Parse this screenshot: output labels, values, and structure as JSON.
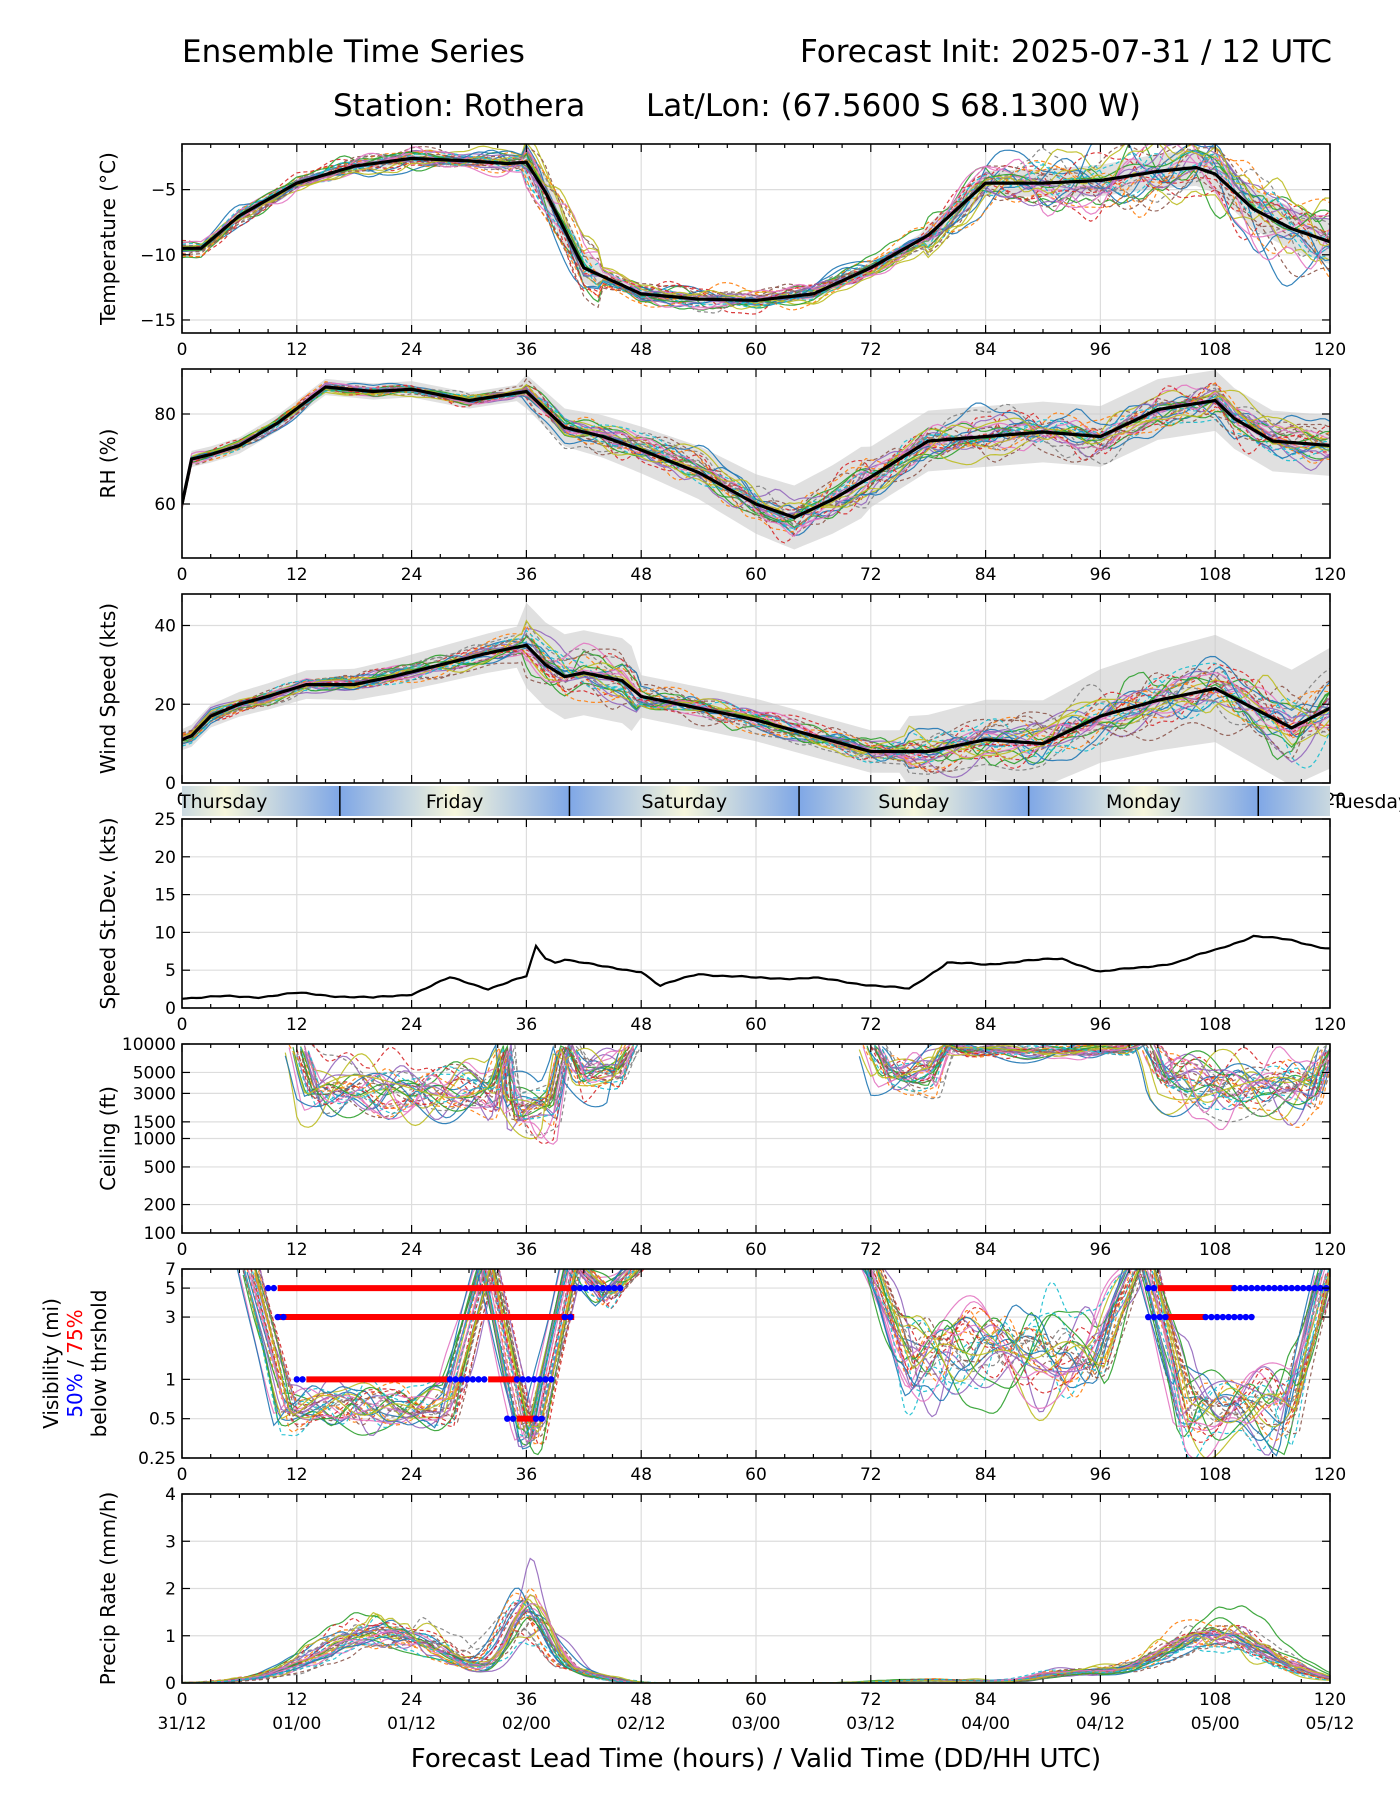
{
  "header": {
    "title_left": "Ensemble Time Series",
    "title_right": "Forecast Init: 2025-07-31 / 12 UTC",
    "station": "Station: Rothera",
    "latlon": "Lat/Lon: (67.5600 S 68.1300 W)"
  },
  "colors": {
    "ensemble": [
      "#1f77b4",
      "#ff7f0e",
      "#2ca02c",
      "#d62728",
      "#9467bd",
      "#8c564b",
      "#e377c2",
      "#7f7f7f",
      "#bcbd22",
      "#17becf"
    ],
    "mean": "#000000",
    "spread": "#cccccc",
    "grid": "#dddddd",
    "vis50": "#0000ff",
    "vis75": "#ff0000",
    "day_light": "#f6f6dc",
    "day_dark": "#7fa7e6"
  },
  "day_band": {
    "labels": [
      "Thursday",
      "Friday",
      "Saturday",
      "Sunday",
      "Monday",
      "Tuesday"
    ],
    "boundaries_hours": [
      16.5,
      40.5,
      64.5,
      88.5,
      112.5
    ]
  },
  "xaxis": {
    "range": [
      0,
      120
    ],
    "ticks": [
      "0",
      "12",
      "24",
      "36",
      "48",
      "60",
      "72",
      "84",
      "96",
      "108",
      "120"
    ],
    "valid_times": [
      "31/12",
      "01/00",
      "01/12",
      "02/00",
      "02/12",
      "03/00",
      "03/12",
      "04/00",
      "04/12",
      "05/00",
      "05/12"
    ],
    "xlabel": "Forecast Lead Time (hours) / Valid Time (DD/HH UTC)"
  },
  "chart_data": [
    {
      "id": "temperature",
      "type": "line",
      "ylabel": "Temperature (°C)",
      "ylim": [
        -16,
        -1.5
      ],
      "yticks": [
        "−5",
        "−10",
        "−15"
      ],
      "ytick_values": [
        -5,
        -10,
        -15
      ],
      "mean": {
        "x": [
          0,
          2,
          6,
          12,
          18,
          24,
          30,
          34,
          36,
          38,
          42,
          48,
          54,
          60,
          66,
          72,
          78,
          84,
          90,
          96,
          102,
          106,
          108,
          112,
          116,
          120
        ],
        "y": [
          -9.5,
          -9.5,
          -7,
          -4.5,
          -3.2,
          -2.6,
          -2.8,
          -3,
          -2.9,
          -5.2,
          -11,
          -13,
          -13.4,
          -13.5,
          -13,
          -11,
          -8.5,
          -4.5,
          -4.5,
          -4.3,
          -3.6,
          -3.3,
          -3.8,
          -6.5,
          -8,
          -9
        ]
      },
      "spread": 0.9
    },
    {
      "id": "rh",
      "type": "line",
      "ylabel": "RH (%)",
      "ylim": [
        48,
        90
      ],
      "yticks": [
        "80",
        "60"
      ],
      "ytick_values": [
        80,
        60
      ],
      "mean": {
        "x": [
          0,
          1,
          3,
          6,
          10,
          15,
          20,
          24,
          30,
          36,
          40,
          44,
          48,
          54,
          60,
          64,
          68,
          72,
          78,
          84,
          90,
          96,
          102,
          108,
          110,
          114,
          120
        ],
        "y": [
          60,
          70,
          71,
          73,
          78,
          86,
          85,
          85.5,
          83,
          85,
          77,
          75,
          72,
          67,
          60,
          57,
          61,
          66,
          74,
          75,
          76,
          75,
          81,
          83,
          79,
          74,
          73
        ]
      },
      "spread": 2.5
    },
    {
      "id": "wind_speed",
      "type": "line",
      "ylabel": "Wind Speed (kts)",
      "ylim": [
        0,
        48
      ],
      "yticks": [
        "40",
        "20",
        "0"
      ],
      "ytick_values": [
        40,
        20,
        0
      ],
      "mean": {
        "x": [
          0,
          1,
          3,
          6,
          9,
          13,
          18,
          22,
          27,
          32,
          36,
          38,
          40,
          42,
          46,
          48,
          54,
          60,
          66,
          72,
          78,
          84,
          90,
          96,
          102,
          108,
          112,
          116,
          120
        ],
        "y": [
          11,
          12,
          17,
          20,
          22,
          25,
          25,
          27,
          30,
          33,
          35,
          30,
          27,
          28,
          26,
          22,
          19,
          16,
          12,
          8,
          8,
          11,
          10,
          17,
          21,
          24,
          19,
          14,
          19
        ]
      },
      "spread": 3
    },
    {
      "id": "speed_stdev",
      "type": "line",
      "ylabel": "Speed St.Dev. (kts)",
      "ylim": [
        0,
        25
      ],
      "yticks": [
        "25",
        "20",
        "15",
        "10",
        "5",
        "0"
      ],
      "ytick_values": [
        25,
        20,
        15,
        10,
        5,
        0
      ],
      "mean": {
        "x": [
          0,
          4,
          8,
          12,
          16,
          20,
          24,
          28,
          32,
          36,
          37,
          38,
          39,
          40,
          44,
          48,
          50,
          54,
          60,
          66,
          72,
          76,
          80,
          84,
          88,
          92,
          96,
          100,
          104,
          108,
          112,
          116,
          120
        ],
        "y": [
          1.5,
          1.5,
          1.4,
          1.8,
          1.6,
          1.4,
          2,
          4,
          2.5,
          4,
          8,
          6.5,
          6,
          6.5,
          5.5,
          5,
          3,
          4.5,
          3.8,
          4,
          3.2,
          2.5,
          6,
          5.5,
          6.3,
          6.5,
          5,
          5.3,
          6,
          7.5,
          9.5,
          9,
          8
        ]
      }
    },
    {
      "id": "ceiling",
      "type": "line",
      "ylabel": "Ceiling (ft)",
      "yscale": "log",
      "ylim": [
        100,
        10000
      ],
      "yticks": [
        "10000",
        "5000",
        "3000",
        "1500",
        "1000",
        "500",
        "200",
        "100"
      ],
      "ytick_values": [
        10000,
        5000,
        3000,
        1500,
        1000,
        500,
        200,
        100
      ]
    },
    {
      "id": "visibility",
      "type": "line",
      "ylabel_lines": [
        "Visibility (mi)",
        "50%",
        " / ",
        "75%",
        "below thrshold"
      ],
      "yscale": "log",
      "ylim": [
        0.25,
        7
      ],
      "yticks": [
        "7",
        "5",
        "3",
        "1",
        "0.5",
        "0.25"
      ],
      "ytick_values": [
        7,
        5,
        3,
        1,
        0.5,
        0.25
      ],
      "threshold_bars": [
        {
          "threshold": 5,
          "p75": [
            [
              10,
              41
            ]
          ],
          "p50": [
            [
              9,
              10
            ],
            [
              41,
              46
            ]
          ]
        },
        {
          "threshold": 3,
          "p75": [
            [
              10,
              41
            ]
          ],
          "p50": [
            [
              10,
              11
            ],
            [
              40,
              41
            ]
          ]
        },
        {
          "threshold": 1,
          "p75": [
            [
              13,
              28
            ],
            [
              32,
              35
            ]
          ],
          "p50": [
            [
              12,
              13
            ],
            [
              28,
              32
            ],
            [
              35,
              39
            ]
          ]
        },
        {
          "threshold": 0.5,
          "p75": [
            [
              35,
              37
            ]
          ],
          "p50": [
            [
              34,
              35
            ],
            [
              37,
              38
            ]
          ]
        },
        {
          "threshold": 5,
          "p75": [
            [
              102,
              110
            ]
          ],
          "p50": [
            [
              101,
              102
            ],
            [
              110,
              120
            ]
          ]
        },
        {
          "threshold": 3,
          "p75": [
            [
              103,
              107
            ]
          ],
          "p50": [
            [
              101,
              103
            ],
            [
              107,
              112
            ]
          ]
        }
      ]
    },
    {
      "id": "precip",
      "type": "line",
      "ylabel": "Precip Rate (mm/h)",
      "ylim": [
        0,
        4
      ],
      "yticks": [
        "4",
        "3",
        "2",
        "1",
        "0"
      ],
      "ytick_values": [
        4,
        3,
        2,
        1,
        0
      ]
    }
  ]
}
